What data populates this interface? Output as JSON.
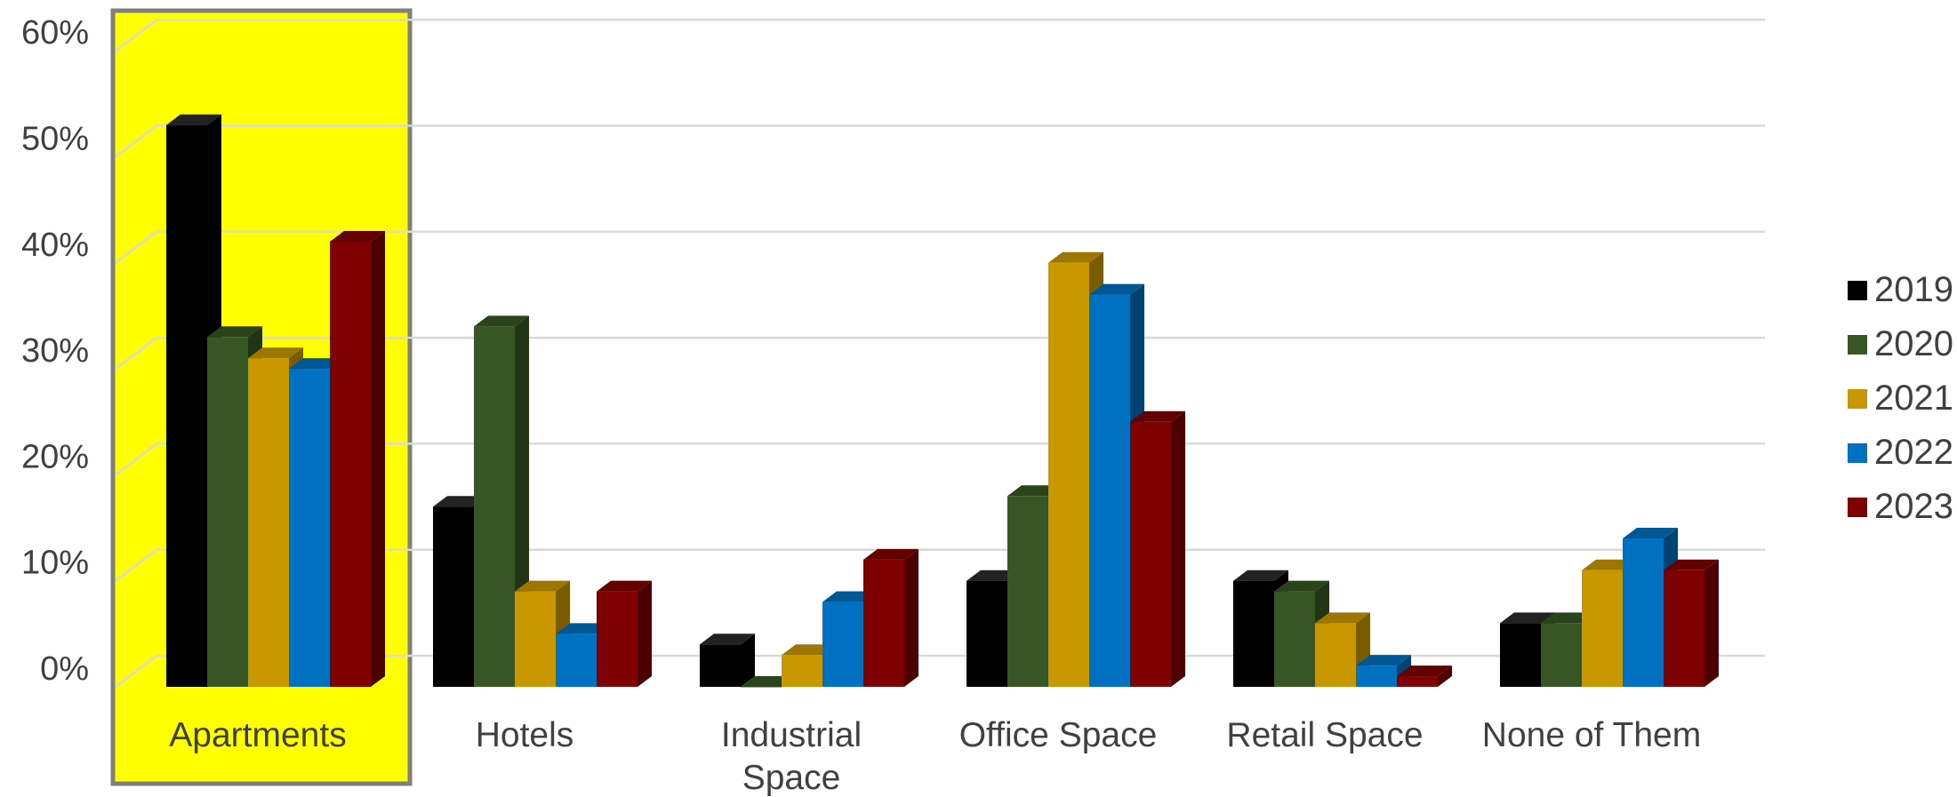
{
  "colors": {
    "highlight_fill": "#ffff00",
    "highlight_border": "#7f7f7f",
    "gridline": "#d9d9d9",
    "text": "#404040"
  },
  "chart_data": {
    "type": "bar",
    "style": "3d-clustered-column",
    "title": "",
    "xlabel": "",
    "ylabel": "",
    "categories": [
      [
        "Apartments"
      ],
      [
        "Hotels"
      ],
      [
        "Industrial",
        "Space"
      ],
      [
        "Office Space"
      ],
      [
        "Retail Space"
      ],
      [
        "None of Them"
      ]
    ],
    "highlighted_category": "Apartments",
    "y_ticks": [
      "0%",
      "10%",
      "20%",
      "30%",
      "40%",
      "50%",
      "60%"
    ],
    "ylim": [
      0,
      60
    ],
    "y_unit": "percent",
    "grid": true,
    "legend_position": "right",
    "series": [
      {
        "name": "2019",
        "color": "#000000",
        "values": [
          53,
          17,
          4,
          10,
          10,
          6
        ]
      },
      {
        "name": "2020",
        "color": "#375623",
        "values": [
          33,
          34,
          0,
          18,
          9,
          6
        ]
      },
      {
        "name": "2021",
        "color": "#c99700",
        "values": [
          31,
          9,
          3,
          40,
          6,
          11
        ]
      },
      {
        "name": "2022",
        "color": "#0070c0",
        "values": [
          30,
          5,
          8,
          37,
          2,
          14
        ]
      },
      {
        "name": "2023",
        "color": "#7f0000",
        "values": [
          42,
          9,
          12,
          25,
          1,
          11
        ]
      }
    ]
  }
}
